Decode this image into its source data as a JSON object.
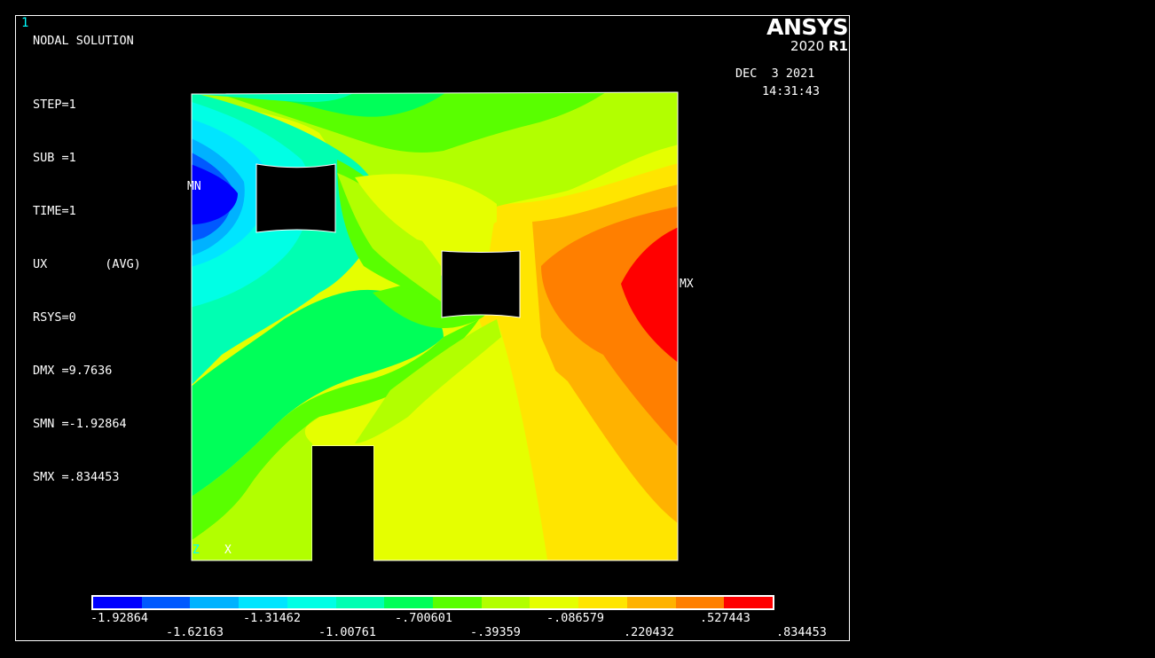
{
  "window_number": "1",
  "title": "NODAL SOLUTION",
  "info_lines": [
    "STEP=1",
    "SUB =1",
    "TIME=1",
    "UX        (AVG)",
    "RSYS=0",
    "DMX =9.7636",
    "SMN =-1.92864",
    "SMX =.834453"
  ],
  "brand": {
    "name": "ANSYS",
    "version": "2020",
    "release": "R1"
  },
  "date": "DEC  3 2021",
  "time": "14:31:43",
  "markers": {
    "min": "MN",
    "max": "MX"
  },
  "triad": {
    "z": "Z",
    "x": "X"
  },
  "legend": {
    "colors": [
      "#0000ff",
      "#0059ff",
      "#00b2ff",
      "#00e5ff",
      "#00ffe5",
      "#00ffb2",
      "#00ff59",
      "#59ff00",
      "#b2ff00",
      "#e5ff00",
      "#ffe500",
      "#ffb200",
      "#ff7f00",
      "#ff0000"
    ],
    "labels_top": [
      "-1.92864",
      "-1.31462",
      "-.700601",
      "-.086579",
      ".527443"
    ],
    "labels_bottom": [
      "-1.62163",
      "-1.00761",
      "-.39359",
      ".220432",
      ".834453"
    ]
  }
}
